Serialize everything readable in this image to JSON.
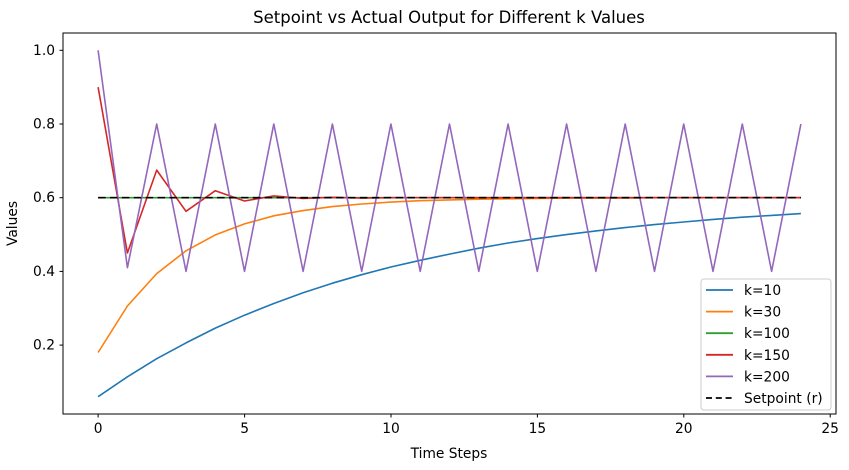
{
  "chart_data": {
    "type": "line",
    "title": "Setpoint vs Actual Output for Different k Values",
    "xlabel": "Time Steps",
    "ylabel": "Values",
    "xlim": [
      -1.2,
      25.2
    ],
    "ylim": [
      0.013,
      1.047
    ],
    "xticks": [
      "0",
      "5",
      "10",
      "15",
      "20",
      "25"
    ],
    "xtick_values": [
      0,
      5,
      10,
      15,
      20,
      25
    ],
    "yticks": [
      "0.2",
      "0.4",
      "0.6",
      "0.8",
      "1.0"
    ],
    "ytick_values": [
      0.2,
      0.4,
      0.6,
      0.8,
      1.0
    ],
    "grid": false,
    "legend_position": "lower right",
    "x": [
      0,
      1,
      2,
      3,
      4,
      5,
      6,
      7,
      8,
      9,
      10,
      11,
      12,
      13,
      14,
      15,
      16,
      17,
      18,
      19,
      20,
      21,
      22,
      23,
      24
    ],
    "series": [
      {
        "id": "k10",
        "name": "k=10",
        "color": "#1f77b4",
        "style": "solid",
        "values": [
          0.06,
          0.114,
          0.163,
          0.206,
          0.246,
          0.281,
          0.313,
          0.342,
          0.368,
          0.391,
          0.412,
          0.43,
          0.447,
          0.463,
          0.477,
          0.489,
          0.5,
          0.51,
          0.519,
          0.527,
          0.534,
          0.541,
          0.547,
          0.552,
          0.557
        ]
      },
      {
        "id": "k30",
        "name": "k=30",
        "color": "#ff7f0e",
        "style": "solid",
        "values": [
          0.18,
          0.306,
          0.394,
          0.456,
          0.499,
          0.529,
          0.551,
          0.565,
          0.576,
          0.583,
          0.588,
          0.592,
          0.594,
          0.596,
          0.597,
          0.598,
          0.599,
          0.599,
          0.599,
          0.6,
          0.6,
          0.6,
          0.6,
          0.6,
          0.6
        ]
      },
      {
        "id": "k100",
        "name": "k=100",
        "color": "#2ca02c",
        "style": "solid",
        "values": [
          0.6,
          0.6,
          0.6,
          0.6,
          0.6,
          0.6,
          0.6,
          0.6,
          0.6,
          0.6,
          0.6,
          0.6,
          0.6,
          0.6,
          0.6,
          0.6,
          0.6,
          0.6,
          0.6,
          0.6,
          0.6,
          0.6,
          0.6,
          0.6,
          0.6
        ]
      },
      {
        "id": "k150",
        "name": "k=150",
        "color": "#d62728",
        "style": "solid",
        "values": [
          0.9,
          0.45,
          0.675,
          0.563,
          0.619,
          0.591,
          0.605,
          0.598,
          0.601,
          0.599,
          0.6,
          0.6,
          0.6,
          0.6,
          0.6,
          0.6,
          0.6,
          0.6,
          0.6,
          0.6,
          0.6,
          0.6,
          0.6,
          0.6,
          0.6
        ]
      },
      {
        "id": "k200",
        "name": "k=200",
        "color": "#9467bd",
        "style": "solid",
        "values": [
          1.0,
          0.41,
          0.8,
          0.4,
          0.8,
          0.4,
          0.8,
          0.4,
          0.8,
          0.4,
          0.8,
          0.4,
          0.8,
          0.4,
          0.8,
          0.4,
          0.8,
          0.4,
          0.8,
          0.4,
          0.8,
          0.4,
          0.8,
          0.4,
          0.8
        ]
      },
      {
        "id": "setpoint",
        "name": "Setpoint (r)",
        "color": "#000000",
        "style": "dashed",
        "values": [
          0.6,
          0.6,
          0.6,
          0.6,
          0.6,
          0.6,
          0.6,
          0.6,
          0.6,
          0.6,
          0.6,
          0.6,
          0.6,
          0.6,
          0.6,
          0.6,
          0.6,
          0.6,
          0.6,
          0.6,
          0.6,
          0.6,
          0.6,
          0.6,
          0.6
        ]
      }
    ]
  }
}
